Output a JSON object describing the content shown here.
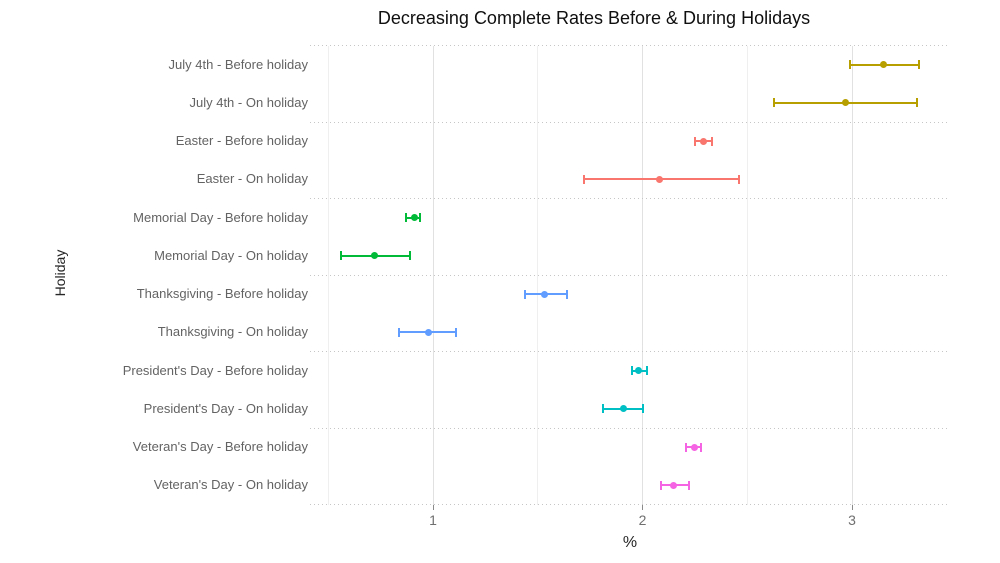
{
  "title": "Decreasing Complete Rates Before & During Holidays",
  "x_axis": {
    "label": "%",
    "tick_labels": [
      "1",
      "2",
      "3"
    ],
    "tick_values": [
      1,
      2,
      3
    ]
  },
  "y_axis": {
    "label": "Holiday"
  },
  "chart_data": {
    "type": "scatter",
    "subtype": "dot-plot-with-error-bars",
    "title": "Decreasing Complete Rates Before & During Holidays",
    "xlabel": "%",
    "ylabel": "Holiday",
    "xlim": [
      0.5,
      3.45
    ],
    "x_ticks": [
      1,
      2,
      3
    ],
    "grid": "light vertical gridlines at major/minor x ticks; dotted horizontal separators between holiday groups",
    "legend_position": "none",
    "points": [
      {
        "label": "July 4th - Before holiday",
        "holiday": "July 4th",
        "period": "Before holiday",
        "estimate": 3.15,
        "ci_low": 2.99,
        "ci_high": 3.32,
        "color": "#B79F00"
      },
      {
        "label": "July 4th - On holiday",
        "holiday": "July 4th",
        "period": "On holiday",
        "estimate": 2.97,
        "ci_low": 2.63,
        "ci_high": 3.31,
        "color": "#B79F00"
      },
      {
        "label": "Easter - Before holiday",
        "holiday": "Easter",
        "period": "Before holiday",
        "estimate": 2.29,
        "ci_low": 2.25,
        "ci_high": 2.33,
        "color": "#F8766D"
      },
      {
        "label": "Easter - On holiday",
        "holiday": "Easter",
        "period": "On holiday",
        "estimate": 2.08,
        "ci_low": 1.72,
        "ci_high": 2.46,
        "color": "#F8766D"
      },
      {
        "label": "Memorial Day - Before holiday",
        "holiday": "Memorial Day",
        "period": "Before holiday",
        "estimate": 0.91,
        "ci_low": 0.87,
        "ci_high": 0.94,
        "color": "#00BA38"
      },
      {
        "label": "Memorial Day - On holiday",
        "holiday": "Memorial Day",
        "period": "On holiday",
        "estimate": 0.72,
        "ci_low": 0.56,
        "ci_high": 0.89,
        "color": "#00BA38"
      },
      {
        "label": "Thanksgiving - Before holiday",
        "holiday": "Thanksgiving",
        "period": "Before holiday",
        "estimate": 1.53,
        "ci_low": 1.44,
        "ci_high": 1.64,
        "color": "#619CFF"
      },
      {
        "label": "Thanksgiving - On holiday",
        "holiday": "Thanksgiving",
        "period": "On holiday",
        "estimate": 0.98,
        "ci_low": 0.84,
        "ci_high": 1.11,
        "color": "#619CFF"
      },
      {
        "label": "President's Day - Before holiday",
        "holiday": "President's Day",
        "period": "Before holiday",
        "estimate": 1.98,
        "ci_low": 1.95,
        "ci_high": 2.02,
        "color": "#00BFC4"
      },
      {
        "label": "President's Day - On holiday",
        "holiday": "President's Day",
        "period": "On holiday",
        "estimate": 1.91,
        "ci_low": 1.81,
        "ci_high": 2.0,
        "color": "#00BFC4"
      },
      {
        "label": "Veteran's Day - Before holiday",
        "holiday": "Veteran's Day",
        "period": "Before holiday",
        "estimate": 2.25,
        "ci_low": 2.21,
        "ci_high": 2.28,
        "color": "#F564E3"
      },
      {
        "label": "Veteran's Day - On holiday",
        "holiday": "Veteran's Day",
        "period": "On holiday",
        "estimate": 2.15,
        "ci_low": 2.09,
        "ci_high": 2.22,
        "color": "#F564E3"
      }
    ]
  }
}
